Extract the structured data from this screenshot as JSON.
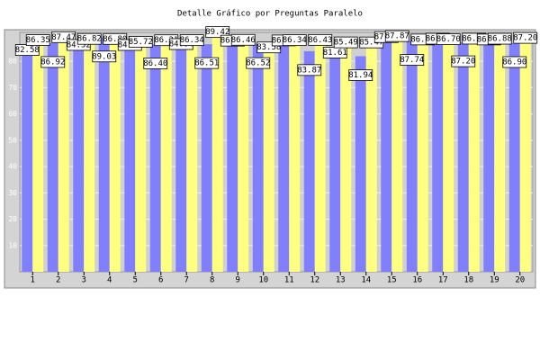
{
  "chart_data": {
    "type": "bar",
    "title": "Detalle Gráfico por Preguntas Paralelo",
    "categories": [
      "1",
      "2",
      "3",
      "4",
      "5",
      "6",
      "7",
      "8",
      "9",
      "10",
      "11",
      "12",
      "13",
      "14",
      "15",
      "16",
      "17",
      "18",
      "19",
      "20"
    ],
    "ylim": [
      0,
      91
    ],
    "yticks": [
      10,
      20,
      30,
      40,
      50,
      60,
      70,
      80
    ],
    "grid": true,
    "series": [
      {
        "color": "#8080ff",
        "values": [
          82.58,
          86.92,
          84.52,
          89.03,
          84.5,
          86.4,
          84.84,
          86.51,
          86.16,
          86.52,
          86.24,
          83.87,
          81.61,
          81.94,
          87.5,
          87.74,
          86.88,
          87.2,
          86.6,
          86.9
        ],
        "value_labels": [
          "82.58",
          "86.92",
          "84.52",
          "89.03",
          "84.50",
          "86.40",
          "84.84",
          "86.51",
          "86.16",
          "86.52",
          "86.24",
          "83.87",
          "81.61",
          "81.94",
          "87.50",
          "87.74",
          "86.88",
          "87.20",
          "86.60",
          "86.90"
        ]
      },
      {
        "color": "#ffff80",
        "values": [
          86.35,
          87.47,
          86.82,
          86.8,
          85.72,
          86.31,
          86.34,
          89.42,
          86.46,
          83.58,
          86.34,
          86.43,
          85.49,
          85.47,
          87.87,
          86.6,
          86.7,
          86.9,
          86.88,
          87.2
        ],
        "value_labels": [
          "86.35",
          "87.47",
          "86.82",
          "86.80",
          "85.72",
          "86.31",
          "86.34",
          "89.42",
          "86.46",
          "83.58",
          "86.34",
          "86.43",
          "85.49",
          "85.47",
          "87.87",
          "86.60",
          "86.70",
          "86.90",
          "86.88",
          "87.20"
        ]
      }
    ]
  }
}
